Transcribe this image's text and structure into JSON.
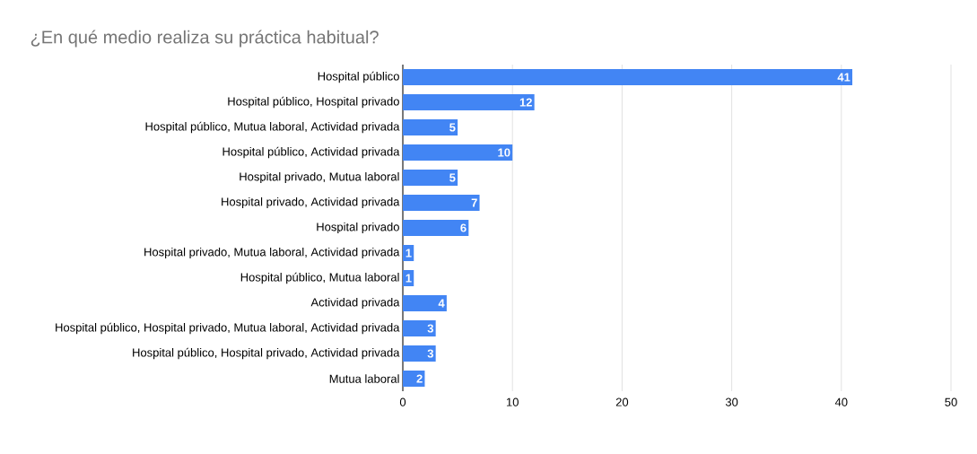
{
  "chart_data": {
    "type": "bar",
    "orientation": "horizontal",
    "title": "¿En qué medio realiza su práctica habitual?",
    "categories": [
      "Hospital público",
      "Hospital público, Hospital privado",
      "Hospital público, Mutua laboral, Actividad privada",
      "Hospital público, Actividad privada",
      "Hospital privado, Mutua laboral",
      "Hospital privado, Actividad privada",
      "Hospital privado",
      "Hospital privado, Mutua laboral, Actividad privada",
      "Hospital público, Mutua laboral",
      "Actividad privada",
      "Hospital público, Hospital privado, Mutua laboral, Actividad privada",
      "Hospital público, Hospital privado, Actividad privada",
      "Mutua laboral"
    ],
    "values": [
      41,
      12,
      5,
      10,
      5,
      7,
      6,
      1,
      1,
      4,
      3,
      3,
      2
    ],
    "color": "#4285f4",
    "xlim": [
      0,
      50
    ],
    "xticks": [
      0,
      10,
      20,
      30,
      40,
      50
    ],
    "grid": "x",
    "data_labels": true
  }
}
